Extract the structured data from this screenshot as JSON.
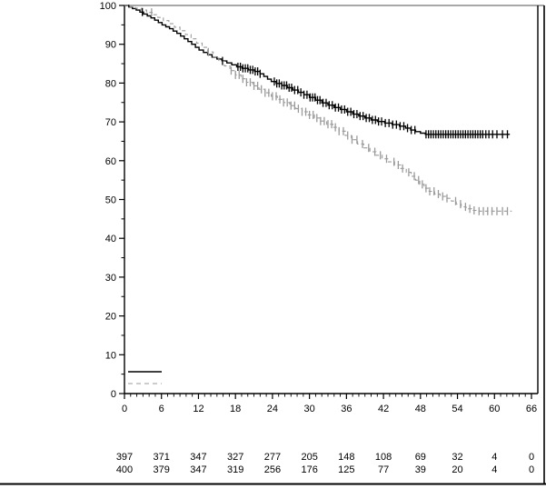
{
  "figure": {
    "background": "#ffffff",
    "outer_border_color": "#000000",
    "frame_top_color": "#8c8c8c"
  },
  "chart_data": {
    "type": "line",
    "subtype": "kaplan-meier-step",
    "title": "",
    "xlabel": "",
    "ylabel": "",
    "xlim": [
      0,
      66
    ],
    "ylim": [
      0,
      100
    ],
    "xticks_major": [
      0,
      6,
      12,
      18,
      24,
      30,
      36,
      42,
      48,
      54,
      60,
      66
    ],
    "xticks_minor_interval": 1,
    "yticks_major": [
      0,
      10,
      20,
      30,
      40,
      50,
      60,
      70,
      80,
      90,
      100
    ],
    "yticks_minor_interval": 5,
    "grid": "off",
    "legend_position": "bottom-left-inside",
    "series": [
      {
        "name": "group-1-solid",
        "color": "#000000",
        "line_style": "solid",
        "final_value": 66.8,
        "steps": [
          [
            0,
            100
          ],
          [
            0.7,
            99.6
          ],
          [
            1.3,
            99.2
          ],
          [
            1.9,
            98.8
          ],
          [
            2.5,
            98.3
          ],
          [
            3.1,
            97.8
          ],
          [
            3.7,
            97.3
          ],
          [
            4.3,
            96.8
          ],
          [
            4.9,
            96.2
          ],
          [
            5.5,
            95.6
          ],
          [
            6.1,
            95.0
          ],
          [
            6.7,
            94.5
          ],
          [
            7.3,
            94.0
          ],
          [
            7.9,
            93.4
          ],
          [
            8.5,
            92.8
          ],
          [
            9.1,
            92.1
          ],
          [
            9.7,
            91.4
          ],
          [
            10.3,
            90.7
          ],
          [
            10.9,
            90.0
          ],
          [
            11.5,
            89.2
          ],
          [
            12.1,
            88.5
          ],
          [
            12.8,
            87.9
          ],
          [
            13.5,
            87.3
          ],
          [
            14.2,
            86.7
          ],
          [
            15.0,
            86.2
          ],
          [
            15.8,
            85.7
          ],
          [
            16.6,
            85.2
          ],
          [
            17.4,
            84.7
          ],
          [
            18.2,
            84.2
          ],
          [
            19.1,
            83.8
          ],
          [
            20.1,
            83.4
          ],
          [
            21.1,
            83.0
          ],
          [
            22.0,
            82.4
          ],
          [
            22.6,
            81.7
          ],
          [
            23.2,
            81.0
          ],
          [
            23.8,
            80.4
          ],
          [
            24.6,
            79.9
          ],
          [
            25.5,
            79.4
          ],
          [
            26.4,
            78.8
          ],
          [
            27.3,
            78.2
          ],
          [
            28.2,
            77.6
          ],
          [
            29.1,
            77.0
          ],
          [
            30.0,
            76.3
          ],
          [
            31.0,
            75.6
          ],
          [
            32.0,
            74.9
          ],
          [
            33.0,
            74.3
          ],
          [
            34.0,
            73.7
          ],
          [
            35.0,
            73.2
          ],
          [
            36.0,
            72.6
          ],
          [
            37.0,
            72.0
          ],
          [
            38.0,
            71.5
          ],
          [
            39.0,
            71.0
          ],
          [
            40.0,
            70.5
          ],
          [
            41.0,
            70.1
          ],
          [
            42.2,
            69.7
          ],
          [
            43.4,
            69.3
          ],
          [
            44.6,
            68.9
          ],
          [
            45.6,
            68.4
          ],
          [
            46.4,
            67.9
          ],
          [
            47.2,
            67.5
          ],
          [
            48.0,
            67.1
          ],
          [
            48.8,
            66.8
          ],
          [
            62.5,
            66.8
          ]
        ],
        "censor_marks_x": [
          2.9,
          15.9,
          18.4,
          18.8,
          19.2,
          19.6,
          20.0,
          20.4,
          20.8,
          21.2,
          21.6,
          22.0,
          24.3,
          24.7,
          25.1,
          25.5,
          25.9,
          26.3,
          26.7,
          27.1,
          27.6,
          28.1,
          28.6,
          29.1,
          29.6,
          30.1,
          30.5,
          30.9,
          31.3,
          31.7,
          32.2,
          32.7,
          33.2,
          33.7,
          34.2,
          34.7,
          35.2,
          35.7,
          36.2,
          36.7,
          37.2,
          37.7,
          38.2,
          38.7,
          39.2,
          39.7,
          40.2,
          40.7,
          41.2,
          41.7,
          42.3,
          42.9,
          43.5,
          44.1,
          44.7,
          45.3,
          45.9,
          46.5,
          47.1,
          48.9,
          49.3,
          49.7,
          50.1,
          50.5,
          50.9,
          51.3,
          51.7,
          52.1,
          52.5,
          52.9,
          53.3,
          53.7,
          54.1,
          54.5,
          54.9,
          55.3,
          55.7,
          56.1,
          56.5,
          56.9,
          57.3,
          57.7,
          58.1,
          58.6,
          59.1,
          59.7,
          60.4,
          61.3,
          62.1
        ]
      },
      {
        "name": "group-2-dashed",
        "color": "#9a9a9a",
        "line_style": "dashed",
        "final_value": 47.0,
        "steps": [
          [
            0,
            100
          ],
          [
            0.9,
            99.7
          ],
          [
            1.8,
            99.3
          ],
          [
            2.7,
            98.8
          ],
          [
            3.6,
            98.2
          ],
          [
            4.5,
            97.6
          ],
          [
            5.4,
            96.9
          ],
          [
            6.3,
            96.1
          ],
          [
            7.2,
            95.3
          ],
          [
            8.1,
            94.4
          ],
          [
            9.0,
            93.5
          ],
          [
            9.9,
            92.5
          ],
          [
            10.8,
            91.4
          ],
          [
            11.7,
            90.3
          ],
          [
            12.6,
            89.2
          ],
          [
            13.5,
            88.0
          ],
          [
            14.4,
            86.8
          ],
          [
            15.3,
            85.6
          ],
          [
            16.2,
            84.4
          ],
          [
            17.1,
            83.2
          ],
          [
            18.0,
            82.1
          ],
          [
            18.9,
            81.1
          ],
          [
            19.8,
            80.2
          ],
          [
            20.8,
            79.3
          ],
          [
            21.8,
            78.4
          ],
          [
            22.8,
            77.5
          ],
          [
            23.8,
            76.6
          ],
          [
            24.8,
            75.8
          ],
          [
            25.8,
            75.0
          ],
          [
            26.8,
            74.2
          ],
          [
            27.8,
            73.4
          ],
          [
            28.8,
            72.6
          ],
          [
            29.8,
            71.8
          ],
          [
            30.8,
            71.0
          ],
          [
            31.8,
            70.2
          ],
          [
            32.8,
            69.4
          ],
          [
            33.8,
            68.6
          ],
          [
            34.8,
            67.6
          ],
          [
            35.8,
            66.5
          ],
          [
            36.8,
            65.4
          ],
          [
            37.8,
            64.3
          ],
          [
            38.8,
            63.3
          ],
          [
            39.8,
            62.3
          ],
          [
            40.8,
            61.4
          ],
          [
            41.8,
            60.5
          ],
          [
            42.8,
            59.7
          ],
          [
            43.8,
            58.9
          ],
          [
            44.8,
            58.0
          ],
          [
            45.7,
            57.0
          ],
          [
            46.5,
            56.0
          ],
          [
            47.2,
            55.0
          ],
          [
            47.9,
            53.9
          ],
          [
            48.6,
            52.9
          ],
          [
            49.4,
            52.1
          ],
          [
            50.3,
            51.4
          ],
          [
            51.2,
            50.8
          ],
          [
            52.1,
            50.3
          ],
          [
            53.0,
            49.6
          ],
          [
            53.8,
            48.8
          ],
          [
            54.6,
            48.1
          ],
          [
            55.4,
            47.6
          ],
          [
            56.3,
            47.2
          ],
          [
            57.2,
            47.0
          ],
          [
            62.8,
            47.0
          ]
        ],
        "censor_marks_x": [
          4.4,
          13.6,
          17.3,
          18.0,
          18.6,
          19.2,
          19.8,
          20.4,
          21.0,
          21.6,
          22.2,
          22.8,
          23.4,
          24.0,
          24.6,
          25.2,
          25.8,
          26.4,
          27.0,
          27.6,
          28.2,
          28.8,
          29.4,
          30.0,
          30.6,
          31.2,
          31.8,
          32.4,
          33.0,
          33.6,
          34.2,
          34.8,
          35.5,
          36.2,
          36.9,
          37.7,
          38.6,
          39.6,
          40.6,
          41.5,
          42.5,
          43.7,
          44.4,
          45.1,
          46.1,
          47.0,
          47.7,
          48.3,
          48.9,
          49.5,
          50.2,
          50.9,
          51.6,
          52.3,
          53.7,
          54.5,
          55.3,
          56.0,
          56.7,
          57.5,
          58.2,
          58.9,
          59.6,
          60.4,
          61.3,
          62.1
        ]
      }
    ],
    "at_risk_table": {
      "x_positions": [
        0,
        6,
        12,
        18,
        24,
        30,
        36,
        42,
        48,
        54,
        60,
        66
      ],
      "rows": [
        {
          "name": "group-1-solid",
          "counts": [
            397,
            371,
            347,
            327,
            277,
            205,
            148,
            108,
            69,
            32,
            4,
            0
          ]
        },
        {
          "name": "group-2-dashed",
          "counts": [
            400,
            379,
            347,
            319,
            256,
            176,
            125,
            77,
            39,
            20,
            4,
            0
          ]
        }
      ]
    }
  }
}
